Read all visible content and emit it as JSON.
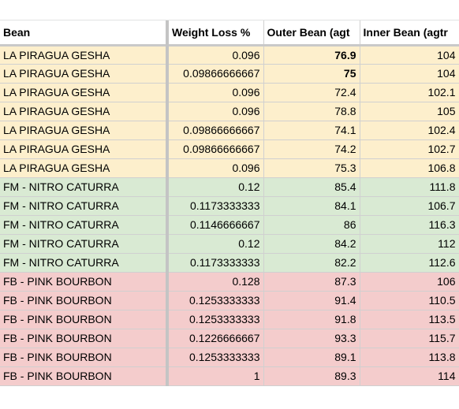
{
  "header": {
    "bean": "Bean",
    "weight_loss": "Weight Loss %",
    "outer_bean": "Outer Bean (agt",
    "inner_bean": "Inner Bean (agtr"
  },
  "group_colors": {
    "gesha": "#fdefcc",
    "caturra": "#d9ead3",
    "bourbon": "#f4cccc"
  },
  "rows": [
    {
      "group": "gesha",
      "bean": "LA PIRAGUA GESHA",
      "weight_loss": "0.096",
      "outer": "76.9",
      "outer_bold": true,
      "inner": "104"
    },
    {
      "group": "gesha",
      "bean": "LA PIRAGUA GESHA",
      "weight_loss": "0.09866666667",
      "outer": "75",
      "outer_bold": true,
      "inner": "104"
    },
    {
      "group": "gesha",
      "bean": "LA PIRAGUA GESHA",
      "weight_loss": "0.096",
      "outer": "72.4",
      "outer_bold": false,
      "inner": "102.1"
    },
    {
      "group": "gesha",
      "bean": "LA PIRAGUA GESHA",
      "weight_loss": "0.096",
      "outer": "78.8",
      "outer_bold": false,
      "inner": "105"
    },
    {
      "group": "gesha",
      "bean": "LA PIRAGUA GESHA",
      "weight_loss": "0.09866666667",
      "outer": "74.1",
      "outer_bold": false,
      "inner": "102.4"
    },
    {
      "group": "gesha",
      "bean": "LA PIRAGUA GESHA",
      "weight_loss": "0.09866666667",
      "outer": "74.2",
      "outer_bold": false,
      "inner": "102.7"
    },
    {
      "group": "gesha",
      "bean": "LA PIRAGUA GESHA",
      "weight_loss": "0.096",
      "outer": "75.3",
      "outer_bold": false,
      "inner": "106.8"
    },
    {
      "group": "caturra",
      "bean": "FM - NITRO CATURRA",
      "weight_loss": "0.12",
      "outer": "85.4",
      "outer_bold": false,
      "inner": "111.8"
    },
    {
      "group": "caturra",
      "bean": "FM - NITRO CATURRA",
      "weight_loss": "0.1173333333",
      "outer": "84.1",
      "outer_bold": false,
      "inner": "106.7"
    },
    {
      "group": "caturra",
      "bean": "FM - NITRO CATURRA",
      "weight_loss": "0.1146666667",
      "outer": "86",
      "outer_bold": false,
      "inner": "116.3"
    },
    {
      "group": "caturra",
      "bean": "FM - NITRO CATURRA",
      "weight_loss": "0.12",
      "outer": "84.2",
      "outer_bold": false,
      "inner": "112"
    },
    {
      "group": "caturra",
      "bean": "FM - NITRO CATURRA",
      "weight_loss": "0.1173333333",
      "outer": "82.2",
      "outer_bold": false,
      "inner": "112.6"
    },
    {
      "group": "bourbon",
      "bean": "FB - PINK BOURBON",
      "weight_loss": "0.128",
      "outer": "87.3",
      "outer_bold": false,
      "inner": "106"
    },
    {
      "group": "bourbon",
      "bean": "FB - PINK BOURBON",
      "weight_loss": "0.1253333333",
      "outer": "91.4",
      "outer_bold": false,
      "inner": "110.5"
    },
    {
      "group": "bourbon",
      "bean": "FB - PINK BOURBON",
      "weight_loss": "0.1253333333",
      "outer": "91.8",
      "outer_bold": false,
      "inner": "113.5"
    },
    {
      "group": "bourbon",
      "bean": "FB - PINK BOURBON",
      "weight_loss": "0.1226666667",
      "outer": "93.3",
      "outer_bold": false,
      "inner": "115.7"
    },
    {
      "group": "bourbon",
      "bean": "FB - PINK BOURBON",
      "weight_loss": "0.1253333333",
      "outer": "89.1",
      "outer_bold": false,
      "inner": "113.8"
    },
    {
      "group": "bourbon",
      "bean": "FB - PINK BOURBON",
      "weight_loss": "1",
      "outer": "89.3",
      "outer_bold": false,
      "inner": "114"
    }
  ]
}
